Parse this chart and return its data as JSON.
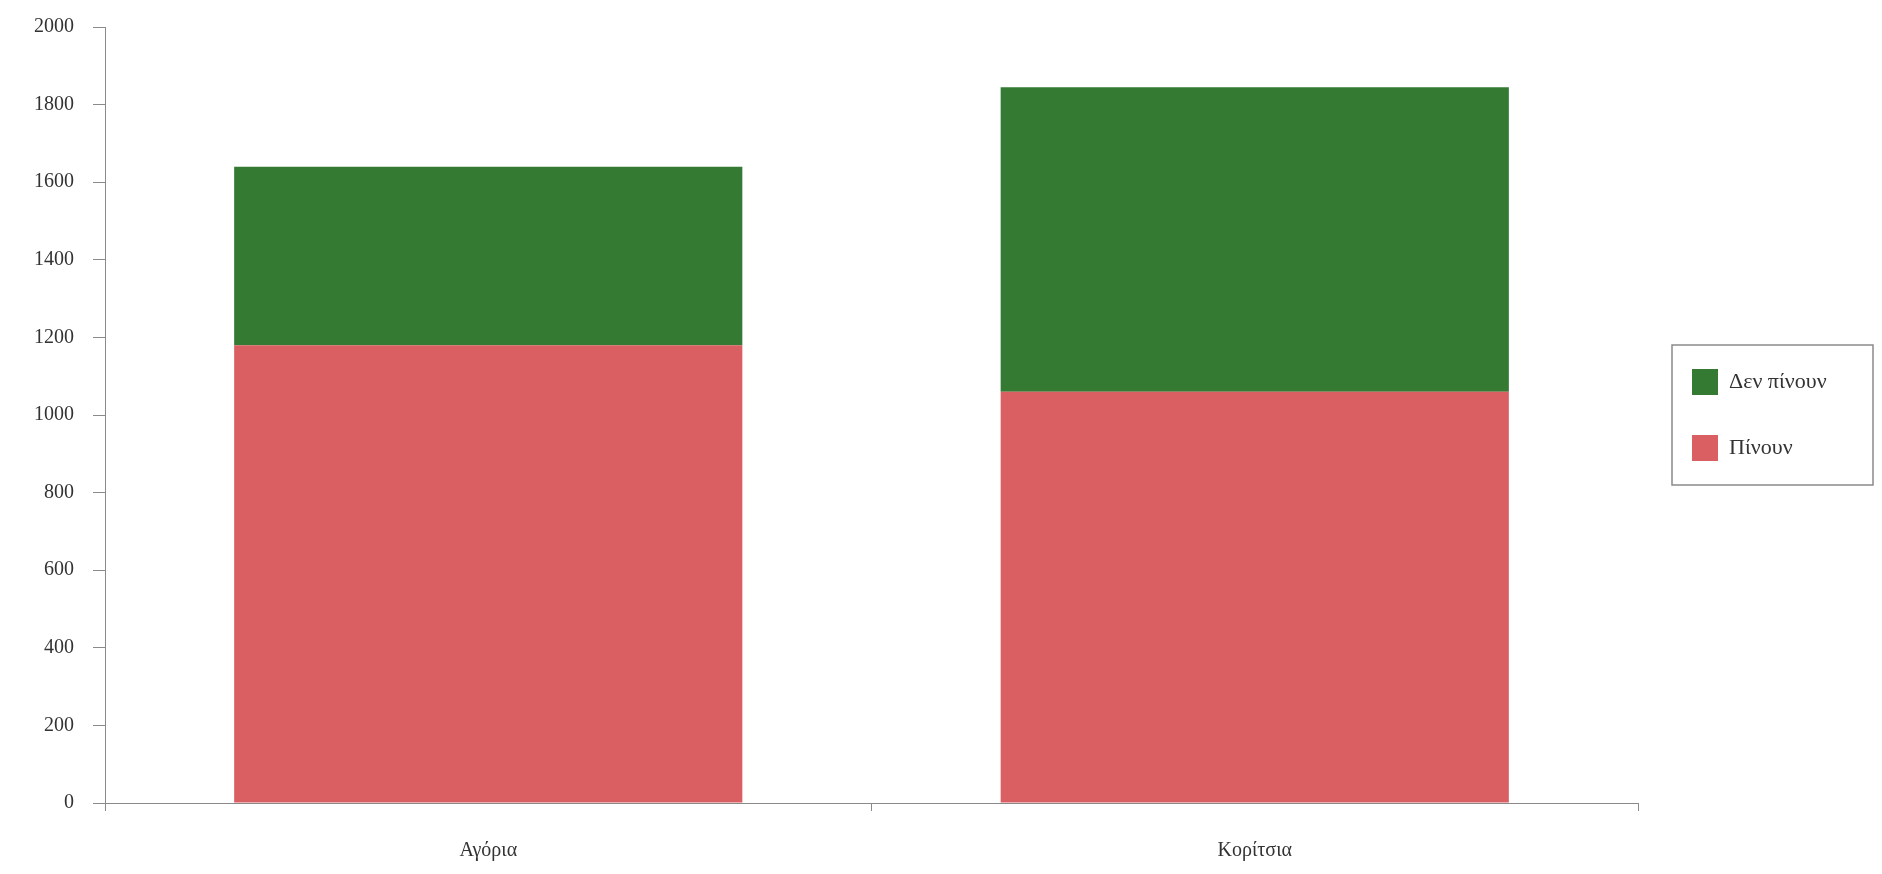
{
  "chart_data": {
    "type": "bar",
    "stacked": true,
    "categories": [
      "Αγόρια",
      "Κορίτσια"
    ],
    "series": [
      {
        "name": "Πίνουν",
        "color": "#d95f63",
        "values": [
          1180,
          1060
        ]
      },
      {
        "name": "Δεν πίνουν",
        "color": "#357a33",
        "values": [
          460,
          785
        ]
      }
    ],
    "ylim": [
      0,
      2000
    ],
    "yticks": [
      0,
      200,
      400,
      600,
      800,
      1000,
      1200,
      1400,
      1600,
      1800,
      2000
    ],
    "legend": "right"
  }
}
